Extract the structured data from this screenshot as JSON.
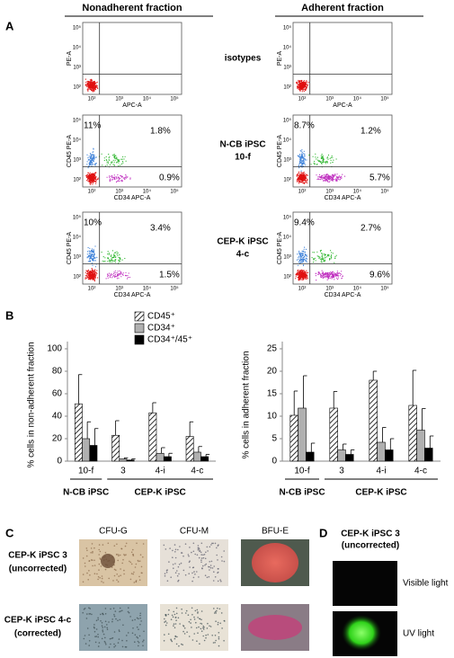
{
  "panel_a": {
    "label": "A",
    "columns": [
      "Nonadherent fraction",
      "Adherent fraction"
    ],
    "tick_labels": [
      "10²",
      "10³",
      "10⁴",
      "10⁵"
    ],
    "rows": [
      {
        "label": [
          "isotypes"
        ],
        "plots": [
          {
            "y_label": "PE-A",
            "x_label": "APC-A"
          },
          {
            "y_label": "PE-A",
            "x_label": "APC-A"
          }
        ]
      },
      {
        "label": [
          "N-CB iPSC",
          "10-f"
        ],
        "plots": [
          {
            "y_label": "CD45 PE-A",
            "x_label": "CD34 APC-A",
            "quadrants": {
              "upper_left": "11%",
              "upper_right": "1.8%",
              "lower_right": "0.9%"
            }
          },
          {
            "y_label": "CD45 PE-A",
            "x_label": "CD34 APC-A",
            "quadrants": {
              "upper_left": "8.7%",
              "upper_right": "1.2%",
              "lower_right": "5.7%"
            }
          }
        ]
      },
      {
        "label": [
          "CEP-K iPSC",
          "4-c"
        ],
        "plots": [
          {
            "y_label": "CD45 PE-A",
            "x_label": "CD34 APC-A",
            "quadrants": {
              "upper_left": "10%",
              "upper_right": "3.4%",
              "lower_right": "1.5%"
            }
          },
          {
            "y_label": "CD45 PE-A",
            "x_label": "CD34 APC-A",
            "quadrants": {
              "upper_left": "9.4%",
              "upper_right": "2.7%",
              "lower_right": "9.6%"
            }
          }
        ]
      }
    ]
  },
  "panel_b_label": "B",
  "chart_data": [
    {
      "type": "bar",
      "y_label": "% cells in non-adherent fraction",
      "categories": [
        "10-f",
        "3",
        "4-i",
        "4-c"
      ],
      "group_labels": [
        "N-CB iPSC",
        "CEP-K iPSC"
      ],
      "ylim": [
        0,
        100
      ],
      "yticks": [
        0,
        20,
        40,
        60,
        80,
        100
      ],
      "legend": "upper-right",
      "series": [
        {
          "name": "CD45⁺",
          "color": "#ffffff",
          "hatch": true,
          "values": [
            51,
            23,
            43,
            22
          ],
          "errors": [
            26,
            13,
            9,
            13
          ]
        },
        {
          "name": "CD34⁺",
          "color": "#b0b0b0",
          "values": [
            20,
            2,
            7,
            8
          ],
          "errors": [
            15,
            1,
            5,
            5
          ]
        },
        {
          "name": "CD34⁺/45⁺",
          "color": "#000000",
          "values": [
            14,
            1,
            4,
            4
          ],
          "errors": [
            15,
            1,
            3,
            2
          ]
        }
      ]
    },
    {
      "type": "bar",
      "y_label": "% cells in adherent fraction",
      "categories": [
        "10-f",
        "3",
        "4-i",
        "4-c"
      ],
      "group_labels": [
        "N-CB iPSC",
        "CEP-K iPSC"
      ],
      "ylim": [
        0,
        25
      ],
      "yticks": [
        0,
        5,
        10,
        15,
        20,
        25
      ],
      "series": [
        {
          "color": "#ffffff",
          "hatch": true,
          "values": [
            10.2,
            11.8,
            18,
            12.4
          ],
          "errors": [
            5.4,
            3.7,
            2,
            7.8
          ]
        },
        {
          "color": "#b0b0b0",
          "values": [
            11.8,
            2.5,
            4.2,
            6.9
          ],
          "errors": [
            7.2,
            1.3,
            3.3,
            4.8
          ]
        },
        {
          "color": "#000000",
          "values": [
            2,
            1.5,
            2.5,
            2.9
          ],
          "errors": [
            2,
            1,
            2.5,
            2.7
          ]
        }
      ]
    }
  ],
  "panel_c": {
    "label": "C",
    "columns": [
      "CFU-G",
      "CFU-M",
      "BFU-E"
    ],
    "rows": [
      [
        "CEP-K iPSC 3",
        "(uncorrected)"
      ],
      [
        "CEP-K iPSC 4-c",
        "(corrected)"
      ]
    ]
  },
  "panel_d": {
    "label": "D",
    "title": [
      "CEP-K iPSC 3",
      "(uncorrected)"
    ],
    "rows": [
      "Visible light",
      "UV light"
    ]
  }
}
